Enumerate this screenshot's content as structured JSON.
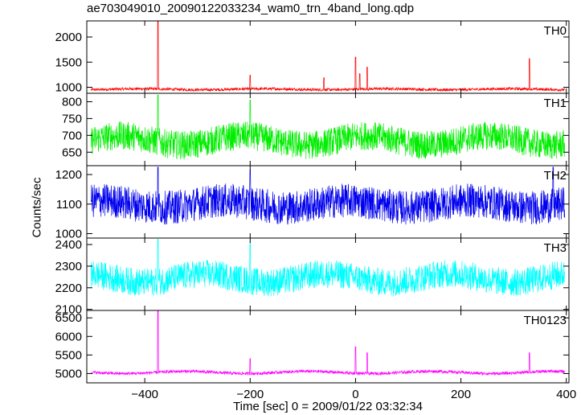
{
  "chart_data": {
    "type": "line",
    "title": "ae703049010_20090122033234_wam0_trn_4band_long.qdp",
    "xlabel": "Time [sec] 0 = 2009/01/22 03:32:34",
    "ylabel": "Counts/sec",
    "xlim": [
      -510,
      405
    ],
    "x_ticks": [
      -400,
      -200,
      0,
      200,
      400
    ],
    "x_step": 0.5,
    "panels": [
      {
        "name": "TH0",
        "color": "#ff0000",
        "ylim": [
          880,
          2320
        ],
        "y_ticks": [
          1000,
          1500,
          2000
        ],
        "baseline": 960,
        "noise": 55,
        "wave_amp": 10,
        "spikes": [
          [
            -375,
            2310
          ],
          [
            -200,
            1240
          ],
          [
            -60,
            1190
          ],
          [
            0,
            1600
          ],
          [
            8,
            1270
          ],
          [
            22,
            1400
          ],
          [
            330,
            1570
          ]
        ]
      },
      {
        "name": "TH1",
        "color": "#00ee00",
        "ylim": [
          610,
          825
        ],
        "y_ticks": [
          650,
          700,
          750,
          800
        ],
        "baseline": 685,
        "noise": 85,
        "wave_amp": 14,
        "spikes": [
          [
            -375,
            820
          ],
          [
            -200,
            805
          ]
        ]
      },
      {
        "name": "TH2",
        "color": "#0000ee",
        "ylim": [
          985,
          1230
        ],
        "y_ticks": [
          1000,
          1100,
          1200
        ],
        "baseline": 1100,
        "noise": 115,
        "wave_amp": 12,
        "spikes": [
          [
            -375,
            1225
          ],
          [
            -200,
            1215
          ],
          [
            375,
            1225
          ]
        ]
      },
      {
        "name": "TH3",
        "color": "#00ffff",
        "ylim": [
          2095,
          2430
        ],
        "y_ticks": [
          2100,
          2200,
          2300,
          2400
        ],
        "baseline": 2245,
        "noise": 130,
        "wave_amp": 20,
        "spikes": [
          [
            -375,
            2425
          ],
          [
            -200,
            2410
          ]
        ]
      },
      {
        "name": "TH0123",
        "color": "#ff00ff",
        "ylim": [
          4750,
          6700
        ],
        "y_ticks": [
          5000,
          5500,
          6000,
          6500
        ],
        "baseline": 5030,
        "noise": 80,
        "wave_amp": 30,
        "spikes": [
          [
            -375,
            6680
          ],
          [
            -200,
            5400
          ],
          [
            0,
            5720
          ],
          [
            22,
            5560
          ],
          [
            330,
            5560
          ]
        ]
      }
    ]
  }
}
